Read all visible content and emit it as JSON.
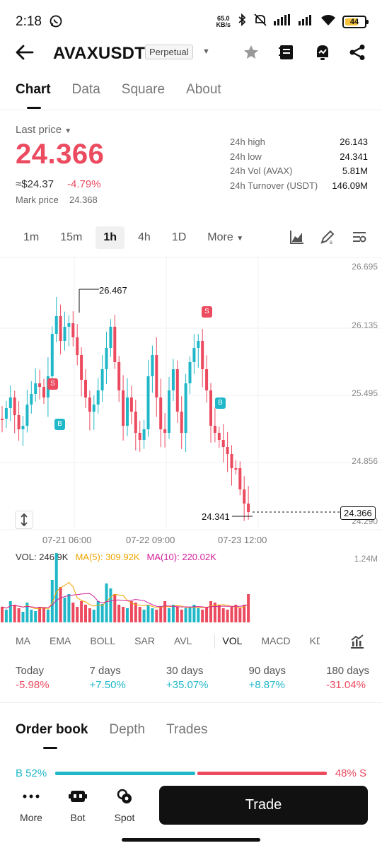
{
  "status_bar": {
    "time": "2:18",
    "net_speed_value": "65.0",
    "net_speed_unit": "KB/s",
    "battery": "44"
  },
  "header": {
    "symbol": "AVAXUSDT",
    "contract_type": "Perpetual"
  },
  "main_tabs": [
    "Chart",
    "Data",
    "Square",
    "About"
  ],
  "price": {
    "last_price_label": "Last price",
    "last_price": "24.366",
    "usd_price": "≈$24.37",
    "change_pct": "-4.79%",
    "mark_price_label": "Mark price",
    "mark_price": "24.368"
  },
  "stats": [
    {
      "label": "24h high",
      "value": "26.143"
    },
    {
      "label": "24h low",
      "value": "24.341"
    },
    {
      "label": "24h Vol (AVAX)",
      "value": "5.81M"
    },
    {
      "label": "24h Turnover (USDT)",
      "value": "146.09M"
    }
  ],
  "intervals": [
    "1m",
    "15m",
    "1h",
    "4h",
    "1D",
    "More"
  ],
  "active_interval": "1h",
  "chart_data": {
    "type": "candlestick",
    "y_axis_labels": [
      "26.695",
      "26.135",
      "25.495",
      "24.856",
      "24.290"
    ],
    "x_axis_labels": [
      "07-21 06:00",
      "07-22 09:00",
      "07-23 12:00"
    ],
    "high_marker": "26.467",
    "low_marker": "24.341",
    "current_price_tag": "24.366",
    "volume_max_label": "1.24M",
    "volume_legend": {
      "vol": "VOL: 246.9K",
      "ma5": "MA(5): 309.92K",
      "ma10": "MA(10): 220.02K"
    },
    "colors": {
      "up": "#20b8c8",
      "down": "#eb4a5f",
      "ma5": "#f0a400",
      "ma10": "#d1219a"
    }
  },
  "indicators": [
    "MA",
    "EMA",
    "BOLL",
    "SAR",
    "AVL",
    "VOL",
    "MACD",
    "KD"
  ],
  "active_indicator": "VOL",
  "performance": [
    {
      "label": "Today",
      "value": "-5.98%",
      "positive": false
    },
    {
      "label": "7 days",
      "value": "+7.50%",
      "positive": true
    },
    {
      "label": "30 days",
      "value": "+35.07%",
      "positive": true
    },
    {
      "label": "90 days",
      "value": "+8.87%",
      "positive": true
    },
    {
      "label": "180 days",
      "value": "-31.04%",
      "positive": false
    }
  ],
  "orderbook_tabs": [
    "Order book",
    "Depth",
    "Trades"
  ],
  "ratio": {
    "buy": "B 52%",
    "sell": "48% S",
    "buy_fraction": 0.52
  },
  "bottom_nav": {
    "more": "More",
    "bot": "Bot",
    "spot": "Spot",
    "trade": "Trade"
  }
}
